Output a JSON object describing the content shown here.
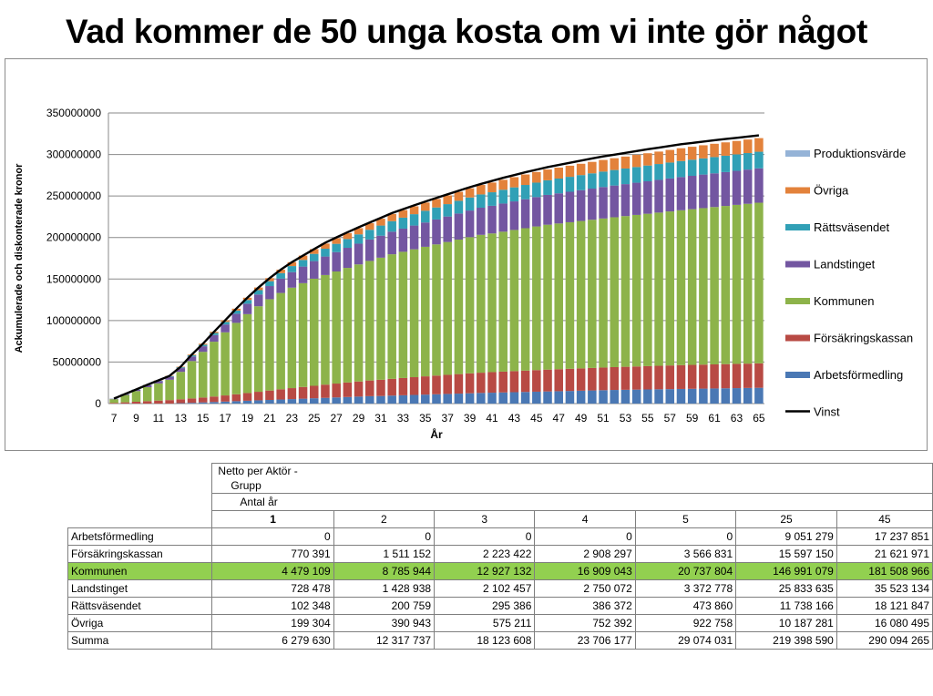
{
  "title": "Vad kommer de 50 unga kosta om vi inte gör något",
  "chart_data": {
    "type": "bar",
    "stacked": true,
    "xlabel": "År",
    "ylabel": "Ackumulerade och diskonterade kronor",
    "ylim": [
      0,
      350000000
    ],
    "yticks": [
      "0",
      "50000000",
      "100000000",
      "150000000",
      "200000000",
      "250000000",
      "300000000",
      "350000000"
    ],
    "xtick_labels": [
      "7",
      "9",
      "11",
      "13",
      "15",
      "17",
      "19",
      "21",
      "23",
      "25",
      "27",
      "29",
      "31",
      "33",
      "35",
      "37",
      "39",
      "41",
      "43",
      "45",
      "47",
      "49",
      "51",
      "53",
      "55",
      "57",
      "59",
      "61",
      "63",
      "65"
    ],
    "x": [
      7,
      8,
      9,
      10,
      11,
      12,
      13,
      14,
      15,
      16,
      17,
      18,
      19,
      20,
      21,
      22,
      23,
      24,
      25,
      26,
      27,
      28,
      29,
      30,
      31,
      32,
      33,
      34,
      35,
      36,
      37,
      38,
      39,
      40,
      41,
      42,
      43,
      44,
      45,
      46,
      47,
      48,
      49,
      50,
      51,
      52,
      53,
      54,
      55,
      56,
      57,
      58,
      59,
      60,
      61,
      62,
      63,
      64,
      65
    ],
    "grid": true,
    "legend_position": "right",
    "series": [
      {
        "name": "Produktionsvärde",
        "color": "#95b3d7",
        "values": [
          0,
          0,
          0,
          0,
          0,
          0,
          0,
          0,
          0,
          0,
          0,
          0,
          0,
          0,
          0,
          0,
          0,
          0,
          0,
          0,
          0,
          0,
          0,
          0,
          0,
          0,
          0,
          0,
          0,
          0,
          0,
          0,
          0,
          0,
          0,
          0,
          0,
          0,
          0,
          0,
          0,
          0,
          0,
          0,
          0,
          0,
          0,
          0,
          0,
          0,
          0,
          0,
          0,
          0,
          0,
          0,
          0,
          0,
          0
        ]
      },
      {
        "name": "Övriga",
        "color": "#e3823b",
        "values": [
          0,
          0,
          0,
          200000,
          400000,
          500000,
          700000,
          900000,
          1200000,
          1500000,
          1900000,
          2300000,
          2700000,
          3200000,
          3700000,
          4200000,
          4700000,
          5200000,
          5700000,
          6200000,
          6700000,
          7100000,
          7500000,
          7900000,
          8300000,
          8700000,
          9100000,
          9500000,
          9900000,
          10200000,
          10500000,
          10800000,
          11100000,
          11400000,
          11700000,
          12000000,
          12300000,
          12600000,
          12800000,
          13000000,
          13200000,
          13400000,
          13600000,
          13800000,
          14000000,
          14200000,
          14400000,
          14600000,
          14800000,
          15000000,
          15200000,
          15400000,
          15600000,
          15800000,
          16000000,
          16100000,
          16200000,
          16300000,
          16400000
        ]
      },
      {
        "name": "Rättsväsendet",
        "color": "#31a0b6",
        "values": [
          100000,
          200000,
          300000,
          400000,
          500000,
          700000,
          1000000,
          1400000,
          1900000,
          2500000,
          3100000,
          3800000,
          4500000,
          5200000,
          5900000,
          6600000,
          7300000,
          8000000,
          8700000,
          9400000,
          10000000,
          10600000,
          11200000,
          11700000,
          12200000,
          12700000,
          13200000,
          13700000,
          14100000,
          14500000,
          14900000,
          15300000,
          15700000,
          16000000,
          16300000,
          16600000,
          16900000,
          17200000,
          17400000,
          17600000,
          17800000,
          18000000,
          18200000,
          18400000,
          18600000,
          18700000,
          18800000,
          18900000,
          19000000,
          19100000,
          19200000,
          19300000,
          19400000,
          19500000,
          19600000,
          19700000,
          19800000,
          19900000,
          20000000
        ]
      },
      {
        "name": "Landstinget",
        "color": "#7356a1",
        "values": [
          500000,
          1000000,
          1600000,
          2200000,
          2800000,
          3500000,
          4500000,
          5500000,
          6700000,
          8000000,
          9500000,
          11000000,
          12600000,
          14200000,
          15800000,
          17300000,
          18700000,
          20000000,
          21200000,
          22300000,
          23300000,
          24200000,
          25000000,
          25800000,
          26500000,
          27200000,
          27900000,
          28600000,
          29300000,
          30000000,
          30700000,
          31400000,
          32100000,
          32700000,
          33300000,
          33900000,
          34400000,
          34900000,
          35400000,
          35900000,
          36300000,
          36700000,
          37100000,
          37500000,
          37900000,
          38200000,
          38500000,
          38800000,
          39100000,
          39400000,
          39700000,
          40000000,
          40200000,
          40400000,
          40600000,
          40800000,
          41000000,
          41200000,
          41400000
        ]
      },
      {
        "name": "Kommunen",
        "color": "#8db34a",
        "values": [
          4500000,
          8800000,
          12900000,
          16900000,
          20700000,
          24500000,
          33000000,
          45000000,
          55000000,
          66000000,
          76000000,
          86000000,
          95000000,
          103000000,
          110000000,
          116000000,
          121000000,
          125000000,
          129000000,
          132000000,
          135000000,
          138000000,
          141000000,
          144000000,
          147000000,
          150000000,
          152000000,
          154000000,
          156000000,
          158000000,
          160000000,
          162000000,
          164000000,
          166000000,
          167000000,
          168500000,
          170000000,
          171500000,
          173000000,
          174500000,
          175500000,
          176500000,
          177500000,
          178500000,
          179500000,
          180500000,
          181500000,
          182500000,
          183500000,
          184500000,
          185500000,
          186500000,
          187500000,
          188500000,
          189500000,
          190500000,
          191500000,
          192500000,
          193500000
        ]
      },
      {
        "name": "Försäkringskassan",
        "color": "#b84a44",
        "values": [
          800000,
          1500000,
          2200000,
          2900000,
          3600000,
          4200000,
          4700000,
          5300000,
          5900000,
          6600000,
          7400000,
          8300000,
          9300000,
          10300000,
          11300000,
          12300000,
          13200000,
          14100000,
          15000000,
          15900000,
          16700000,
          17500000,
          18200000,
          18900000,
          19600000,
          20200000,
          20800000,
          21400000,
          22000000,
          22500000,
          23000000,
          23500000,
          24000000,
          24400000,
          24800000,
          25100000,
          25400000,
          25700000,
          26000000,
          26300000,
          26500000,
          26700000,
          26900000,
          27100000,
          27300000,
          27500000,
          27700000,
          27900000,
          28100000,
          28300000,
          28500000,
          28700000,
          28800000,
          28900000,
          29000000,
          29100000,
          29200000,
          29300000,
          29400000
        ]
      },
      {
        "name": "Arbetsförmedling",
        "color": "#4a78b4",
        "values": [
          0,
          0,
          0,
          0,
          0,
          0,
          500000,
          900000,
          1400000,
          1900000,
          2400000,
          2900000,
          3400000,
          3900000,
          4400000,
          4900000,
          5400000,
          5900000,
          6400000,
          6900000,
          7400000,
          7900000,
          8400000,
          8900000,
          9100000,
          9600000,
          10000000,
          10400000,
          10800000,
          11200000,
          11600000,
          12000000,
          12400000,
          12800000,
          13100000,
          13400000,
          13700000,
          14000000,
          14300000,
          14600000,
          14900000,
          15200000,
          15500000,
          15800000,
          16100000,
          16400000,
          16600000,
          16800000,
          17000000,
          17200000,
          17400000,
          17600000,
          17800000,
          18000000,
          18200000,
          18400000,
          18600000,
          18800000,
          19000000
        ]
      }
    ],
    "line": {
      "name": "Vinst",
      "color": "#000000",
      "values": [
        6000000,
        11500000,
        17000000,
        22600000,
        28000000,
        33400000,
        44400000,
        59000000,
        72100000,
        86500000,
        100300000,
        114300000,
        127500000,
        139800000,
        151100000,
        161300000,
        170300000,
        178200000,
        186000000,
        193700000,
        200100000,
        206300000,
        212300000,
        218100000,
        223700000,
        229400000,
        234100000,
        238800000,
        243300000,
        247700000,
        252000000,
        256300000,
        260600000,
        264500000,
        268200000,
        271900000,
        275200000,
        278600000,
        281700000,
        284800000,
        287400000,
        290000000,
        292600000,
        295200000,
        297700000,
        299800000,
        301900000,
        304100000,
        306300000,
        308300000,
        310300000,
        312300000,
        313900000,
        315500000,
        317100000,
        318600000,
        320000000,
        321500000,
        323000000
      ]
    }
  },
  "table": {
    "header_lines": [
      "Netto per Aktör -",
      "Grupp",
      "Antal år"
    ],
    "columns": [
      "1",
      "2",
      "3",
      "4",
      "5",
      "25",
      "45"
    ],
    "rows": [
      {
        "label": "Arbetsförmedling",
        "values": [
          "0",
          "0",
          "0",
          "0",
          "0",
          "9 051 279",
          "17 237 851"
        ],
        "highlight": false
      },
      {
        "label": "Försäkringskassan",
        "values": [
          "770 391",
          "1 511 152",
          "2 223 422",
          "2 908 297",
          "3 566 831",
          "15 597 150",
          "21 621 971"
        ],
        "highlight": false
      },
      {
        "label": "Kommunen",
        "values": [
          "4 479 109",
          "8 785 944",
          "12 927 132",
          "16 909 043",
          "20 737 804",
          "146 991 079",
          "181 508 966"
        ],
        "highlight": true
      },
      {
        "label": "Landstinget",
        "values": [
          "728 478",
          "1 428 938",
          "2 102 457",
          "2 750 072",
          "3 372 778",
          "25 833 635",
          "35 523 134"
        ],
        "highlight": false
      },
      {
        "label": "Rättsväsendet",
        "values": [
          "102 348",
          "200 759",
          "295 386",
          "386 372",
          "473 860",
          "11 738 166",
          "18 121 847"
        ],
        "highlight": false
      },
      {
        "label": "Övriga",
        "values": [
          "199 304",
          "390 943",
          "575 211",
          "752 392",
          "922 758",
          "10 187 281",
          "16 080 495"
        ],
        "highlight": false
      },
      {
        "label": "Summa",
        "values": [
          "6 279 630",
          "12 317 737",
          "18 123 608",
          "23 706 177",
          "29 074 031",
          "219 398 590",
          "290 094 265"
        ],
        "highlight": false
      }
    ]
  }
}
